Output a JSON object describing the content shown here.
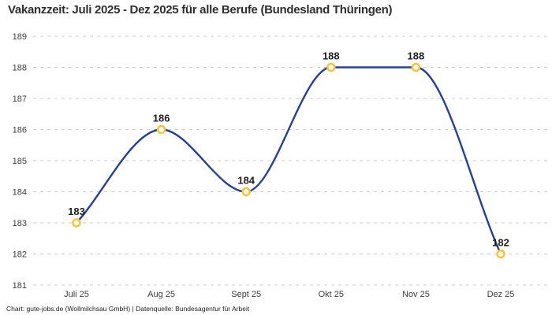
{
  "title": "Vakanzzeit: Juli 2025 - Dez 2025 für alle Berufe (Bundesland Thüringen)",
  "footer": "Chart: gute-jobs.de (Wollmilchsau GmbH) | Datenquelle: Bundesagentur für Arbeit",
  "chart_data": {
    "type": "line",
    "title": "Vakanzzeit: Juli 2025 - Dez 2025 für alle Berufe (Bundesland Thüringen)",
    "categories": [
      "Juli 25",
      "Aug 25",
      "Sept 25",
      "Okt 25",
      "Nov 25",
      "Dez 25"
    ],
    "values": [
      183,
      186,
      184,
      188,
      188,
      182
    ],
    "xlabel": "",
    "ylabel": "",
    "ylim": [
      181,
      189
    ],
    "yticks": [
      189,
      188,
      187,
      186,
      185,
      184,
      183,
      182,
      181
    ],
    "grid": "horizontal-dashed",
    "legend": "none",
    "curve": "monotone",
    "data_labels": true,
    "source_note": "Chart: gute-jobs.de (Wollmilchsau GmbH) | Datenquelle: Bundesagentur für Arbeit",
    "colors": {
      "line": "#22409d",
      "marker_stroke": "#ffc126",
      "marker_fill": "#ffffff",
      "grid": "#cccccc",
      "title_text": "#2e2e2e",
      "axis_text": "#3c3c3c",
      "point_label_text": "#1f1f1f",
      "background": "#ffffff"
    }
  }
}
